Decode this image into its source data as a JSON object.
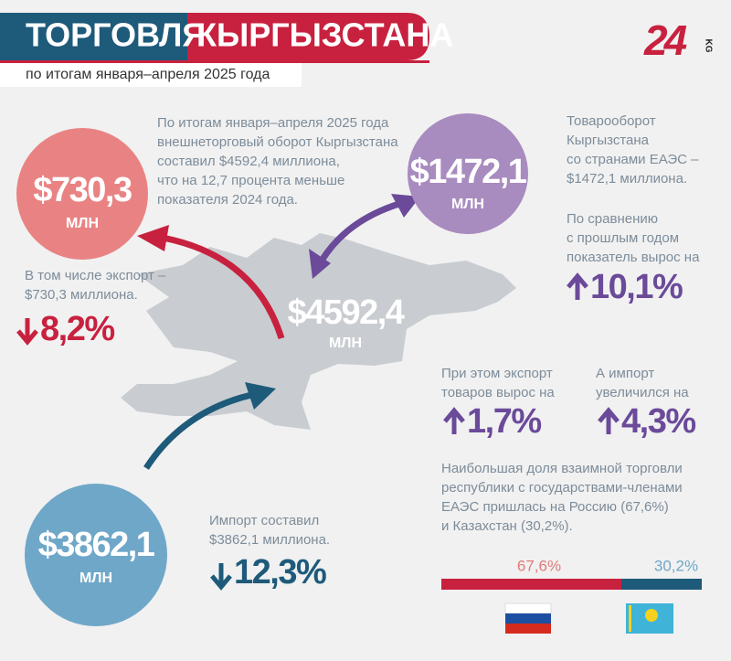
{
  "header": {
    "title_left": "ТОРГОВЛЯ",
    "title_right": "КЫРГЫЗСТАНА",
    "subtitle": "по итогам января–апреля 2025 года",
    "logo": "24",
    "logo_suffix": "KG"
  },
  "total": {
    "amount": "$4592,4",
    "unit": "млн",
    "text": [
      "По итогам января–апреля 2025 года",
      "внешнеторговый оборот Кыргызстана",
      "составил $4592,4 миллиона,",
      "что на 12,7 процента меньше",
      "показателя 2024 года."
    ]
  },
  "export": {
    "amount": "$730,3",
    "unit": "млн",
    "text": [
      "В том числе экспорт –",
      "$730,3 миллиона."
    ],
    "change": "8,2%"
  },
  "import": {
    "amount": "$3862,1",
    "unit": "млн",
    "text": [
      "Импорт составил",
      "$3862,1 миллиона."
    ],
    "change": "12,3%"
  },
  "eaeu": {
    "amount": "$1472,1",
    "unit": "млн",
    "text": [
      "Товарооборот",
      "Кыргызстана",
      "со странами ЕАЭС –",
      "$1472,1 миллиона."
    ],
    "growth_text": [
      "По сравнению",
      "с прошлым годом",
      "показатель вырос на"
    ],
    "growth": "10,1%",
    "export_text": [
      "При этом экспорт",
      "товаров вырос на"
    ],
    "export_growth": "1,7%",
    "import_text": [
      "А импорт",
      "увеличился на"
    ],
    "import_growth": "4,3%",
    "shares_text": [
      "Наибольшая доля взаимной торговли",
      "республики с государствами-членами",
      "ЕАЭС пришлась на Россию (67,6%)",
      "и Казахстан (30,2%)."
    ],
    "shares": [
      {
        "value": 67.6,
        "label": "67,6%",
        "color": "#c8213f"
      },
      {
        "value": 30.2,
        "label": "30,2%",
        "color": "#1e5a7a"
      }
    ]
  }
}
